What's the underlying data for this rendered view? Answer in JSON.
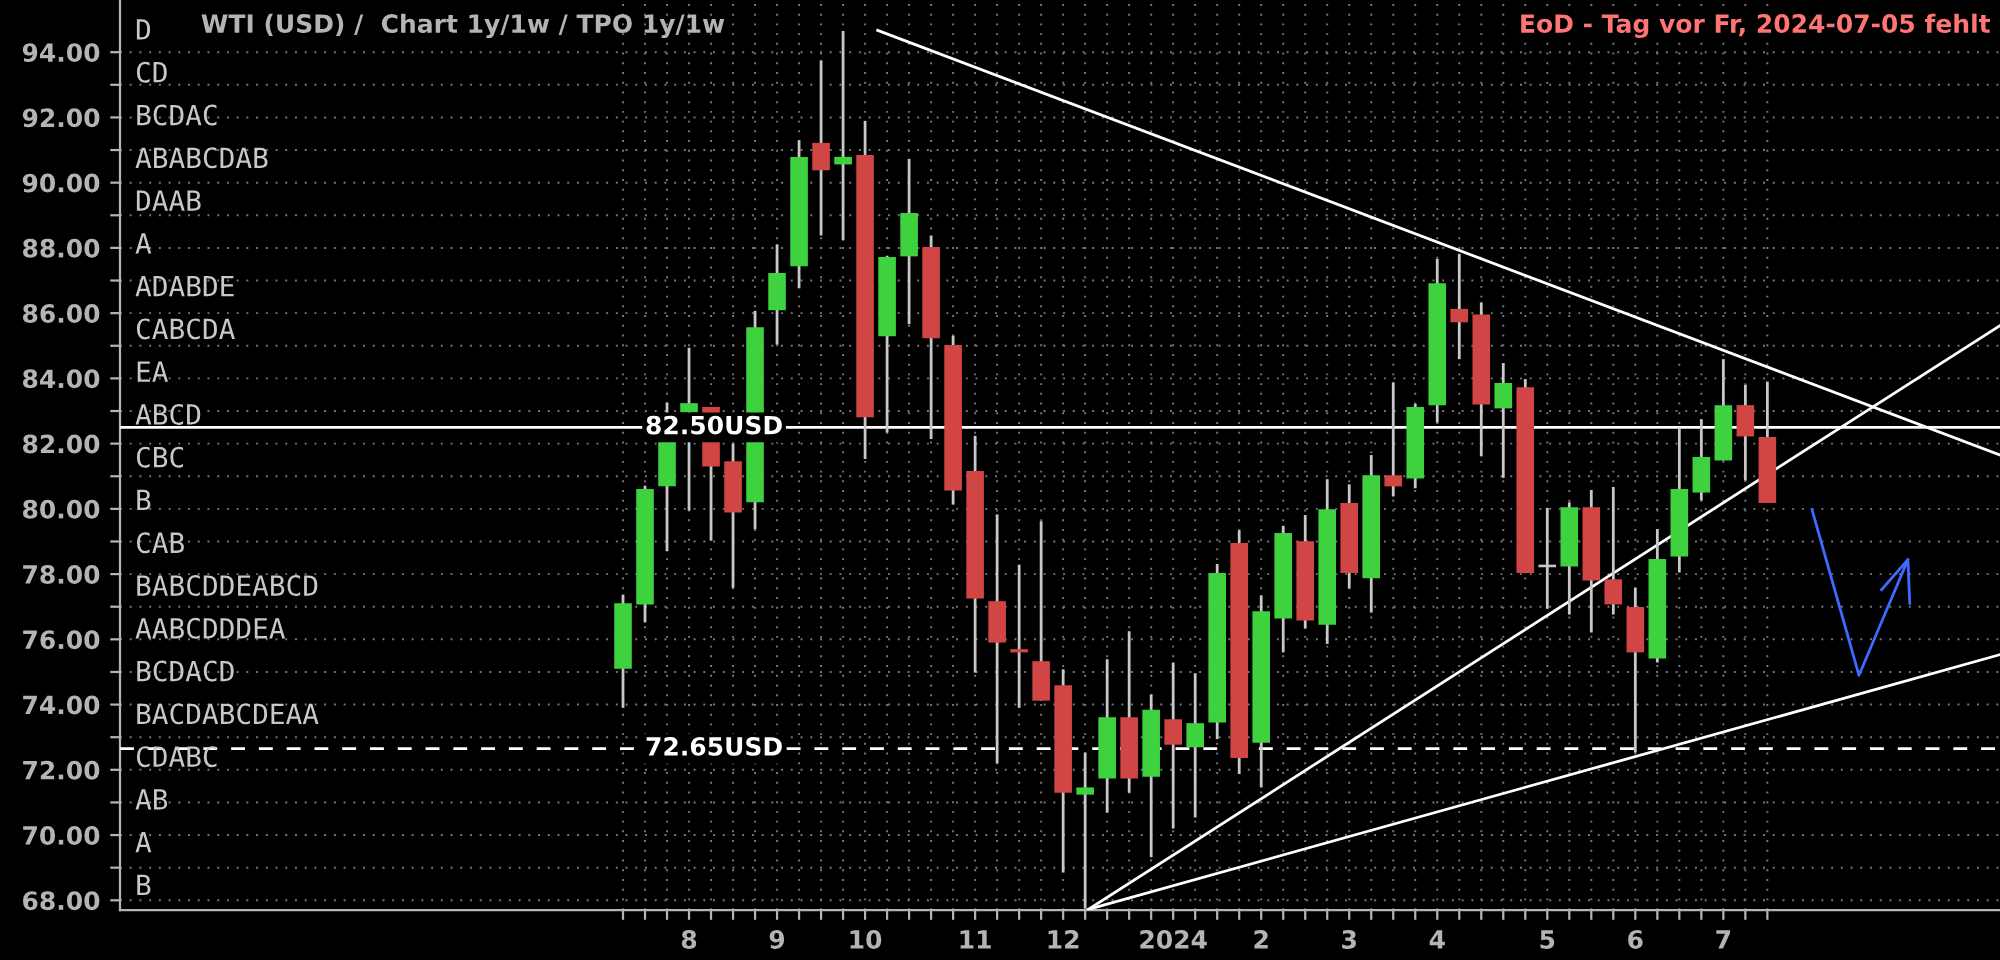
{
  "chart_data": {
    "type": "candlestick",
    "title": "WTI (USD) /  Chart 1y/1w / TPO 1y/1w",
    "x": [
      "2023-07-10",
      "2023-07-17",
      "2023-07-24",
      "2023-07-31",
      "2023-08-07",
      "2023-08-14",
      "2023-08-21",
      "2023-08-28",
      "2023-09-04",
      "2023-09-11",
      "2023-09-18",
      "2023-09-25",
      "2023-10-02",
      "2023-10-09",
      "2023-10-16",
      "2023-10-23",
      "2023-10-30",
      "2023-11-06",
      "2023-11-13",
      "2023-11-20",
      "2023-11-27",
      "2023-12-04",
      "2023-12-11",
      "2023-12-18",
      "2023-12-25",
      "2024-01-01",
      "2024-01-08",
      "2024-01-15",
      "2024-01-22",
      "2024-01-29",
      "2024-02-05",
      "2024-02-12",
      "2024-02-19",
      "2024-02-26",
      "2024-03-04",
      "2024-03-11",
      "2024-03-18",
      "2024-03-25",
      "2024-04-01",
      "2024-04-08",
      "2024-04-15",
      "2024-04-22",
      "2024-04-29",
      "2024-05-06",
      "2024-05-13",
      "2024-05-20",
      "2024-05-27",
      "2024-06-03",
      "2024-06-10",
      "2024-06-17",
      "2024-06-24",
      "2024-07-01",
      "2024-07-08"
    ],
    "ohlc": [
      [
        75.1,
        77.37,
        73.9,
        77.11
      ],
      [
        77.07,
        80.71,
        76.52,
        80.61
      ],
      [
        80.69,
        83.26,
        78.7,
        82.85
      ],
      [
        82.96,
        84.94,
        79.95,
        83.24
      ],
      [
        83.12,
        83.12,
        79.03,
        81.3
      ],
      [
        81.46,
        82.0,
        77.58,
        79.89
      ],
      [
        80.2,
        86.07,
        79.38,
        85.57
      ],
      [
        86.09,
        88.11,
        85.04,
        87.23
      ],
      [
        87.44,
        91.3,
        86.76,
        90.79
      ],
      [
        91.22,
        93.75,
        88.38,
        90.38
      ],
      [
        90.56,
        94.65,
        88.23,
        90.79
      ],
      [
        90.85,
        91.89,
        81.53,
        82.81
      ],
      [
        85.29,
        87.76,
        82.34,
        87.72
      ],
      [
        87.74,
        90.73,
        85.66,
        89.07
      ],
      [
        88.03,
        88.38,
        82.14,
        85.23
      ],
      [
        85.02,
        85.31,
        80.13,
        80.56
      ],
      [
        81.16,
        82.24,
        74.98,
        77.25
      ],
      [
        77.17,
        79.83,
        72.2,
        75.9
      ],
      [
        75.7,
        78.29,
        73.9,
        75.6
      ],
      [
        75.33,
        79.62,
        74.12,
        74.12
      ],
      [
        74.59,
        75.08,
        68.85,
        71.3
      ],
      [
        71.24,
        72.53,
        67.75,
        71.46
      ],
      [
        71.73,
        75.39,
        70.69,
        73.61
      ],
      [
        73.61,
        76.25,
        71.3,
        71.73
      ],
      [
        71.79,
        74.31,
        69.32,
        73.84
      ],
      [
        73.55,
        75.29,
        70.2,
        72.77
      ],
      [
        72.69,
        74.96,
        70.54,
        73.43
      ],
      [
        73.45,
        78.31,
        72.94,
        78.03
      ],
      [
        78.95,
        79.34,
        71.87,
        72.36
      ],
      [
        72.83,
        77.35,
        71.46,
        76.86
      ],
      [
        76.64,
        79.48,
        75.6,
        79.26
      ],
      [
        79.01,
        79.81,
        76.33,
        76.58
      ],
      [
        76.45,
        80.91,
        75.86,
        79.99
      ],
      [
        80.18,
        80.75,
        77.56,
        78.03
      ],
      [
        77.87,
        81.65,
        76.82,
        81.03
      ],
      [
        81.03,
        83.88,
        80.38,
        80.69
      ],
      [
        80.93,
        83.22,
        80.63,
        83.12
      ],
      [
        83.18,
        87.66,
        82.65,
        86.92
      ],
      [
        86.13,
        87.82,
        84.59,
        85.72
      ],
      [
        85.96,
        86.33,
        81.61,
        83.2
      ],
      [
        83.08,
        84.47,
        80.95,
        83.86
      ],
      [
        83.73,
        83.98,
        78.03,
        78.03
      ],
      [
        78.21,
        80.03,
        76.94,
        78.21
      ],
      [
        78.23,
        80.2,
        76.76,
        80.05
      ],
      [
        80.05,
        80.58,
        76.21,
        77.8
      ],
      [
        77.84,
        80.67,
        76.76,
        77.07
      ],
      [
        76.99,
        77.58,
        72.53,
        75.6
      ],
      [
        75.41,
        79.38,
        75.29,
        78.46
      ],
      [
        78.54,
        82.49,
        78.05,
        80.61
      ],
      [
        80.5,
        82.75,
        80.26,
        81.59
      ],
      [
        81.48,
        84.59,
        81.48,
        83.18
      ],
      [
        83.18,
        83.8,
        80.87,
        82.22
      ],
      [
        82.2,
        83.9,
        80.18,
        80.18
      ]
    ],
    "colors": [
      "#3fd23f",
      "#3fd23f",
      "#3fd23f",
      "#3fd23f",
      "#d24545",
      "#d24545",
      "#3fd23f",
      "#3fd23f",
      "#3fd23f",
      "#d24545",
      "#3fd23f",
      "#d24545",
      "#3fd23f",
      "#3fd23f",
      "#d24545",
      "#d24545",
      "#d24545",
      "#d24545",
      "#d24545",
      "#d24545",
      "#d24545",
      "#3fd23f",
      "#3fd23f",
      "#d24545",
      "#3fd23f",
      "#d24545",
      "#3fd23f",
      "#3fd23f",
      "#d24545",
      "#3fd23f",
      "#3fd23f",
      "#d24545",
      "#3fd23f",
      "#d24545",
      "#3fd23f",
      "#d24545",
      "#3fd23f",
      "#3fd23f",
      "#d24545",
      "#d24545",
      "#3fd23f",
      "#d24545",
      "#c8c8c8",
      "#3fd23f",
      "#d24545",
      "#d24545",
      "#d24545",
      "#3fd23f",
      "#3fd23f",
      "#3fd23f",
      "#3fd23f",
      "#d24545",
      "#d24545"
    ],
    "series": [
      {
        "type": "line",
        "color": "#ffffff",
        "x": [
          "2023-09-29",
          "2024-09-20"
        ],
        "values": [
          94.67,
          81.65
        ]
      },
      {
        "type": "line",
        "color": "#ffffff",
        "x": [
          "2023-12-05",
          "2024-09-20"
        ],
        "values": [
          67.72,
          85.62
        ]
      },
      {
        "type": "line",
        "color": "#ffffff",
        "x": [
          "2023-12-05",
          "2024-09-20"
        ],
        "values": [
          67.72,
          75.53
        ]
      }
    ],
    "ref_lines": [
      {
        "axis": "y",
        "value": 82.5,
        "label": "82.50USD",
        "color": "#ffffff",
        "line_style": "solid"
      },
      {
        "axis": "y",
        "value": 72.65,
        "label": "72.65USD",
        "color": "#ffffff",
        "line_style": "dashed"
      }
    ],
    "xlim": [
      "2023-01-31",
      "2024-09-20"
    ],
    "xticks": [
      {
        "value": "2023-07-10",
        "label": null
      },
      {
        "value": "2023-07-17",
        "label": null
      },
      {
        "value": "2023-07-24",
        "label": null
      },
      {
        "value": "2023-07-31",
        "label": "8"
      },
      {
        "value": "2023-08-07",
        "label": null
      },
      {
        "value": "2023-08-14",
        "label": null
      },
      {
        "value": "2023-08-21",
        "label": null
      },
      {
        "value": "2023-08-28",
        "label": "9"
      },
      {
        "value": "2023-09-04",
        "label": null
      },
      {
        "value": "2023-09-11",
        "label": null
      },
      {
        "value": "2023-09-18",
        "label": null
      },
      {
        "value": "2023-09-25",
        "label": "10"
      },
      {
        "value": "2023-10-02",
        "label": null
      },
      {
        "value": "2023-10-09",
        "label": null
      },
      {
        "value": "2023-10-16",
        "label": null
      },
      {
        "value": "2023-10-23",
        "label": null
      },
      {
        "value": "2023-10-30",
        "label": "11"
      },
      {
        "value": "2023-11-06",
        "label": null
      },
      {
        "value": "2023-11-13",
        "label": null
      },
      {
        "value": "2023-11-20",
        "label": null
      },
      {
        "value": "2023-11-27",
        "label": "12"
      },
      {
        "value": "2023-12-04",
        "label": null
      },
      {
        "value": "2023-12-11",
        "label": null
      },
      {
        "value": "2023-12-18",
        "label": null
      },
      {
        "value": "2023-12-25",
        "label": null
      },
      {
        "value": "2024-01-01",
        "label": "2024"
      },
      {
        "value": "2024-01-08",
        "label": null
      },
      {
        "value": "2024-01-15",
        "label": null
      },
      {
        "value": "2024-01-22",
        "label": null
      },
      {
        "value": "2024-01-29",
        "label": "2"
      },
      {
        "value": "2024-02-05",
        "label": null
      },
      {
        "value": "2024-02-12",
        "label": null
      },
      {
        "value": "2024-02-19",
        "label": null
      },
      {
        "value": "2024-02-26",
        "label": "3"
      },
      {
        "value": "2024-03-04",
        "label": null
      },
      {
        "value": "2024-03-11",
        "label": null
      },
      {
        "value": "2024-03-18",
        "label": null
      },
      {
        "value": "2024-03-25",
        "label": "4"
      },
      {
        "value": "2024-04-01",
        "label": null
      },
      {
        "value": "2024-04-08",
        "label": null
      },
      {
        "value": "2024-04-15",
        "label": null
      },
      {
        "value": "2024-04-22",
        "label": null
      },
      {
        "value": "2024-04-29",
        "label": "5"
      },
      {
        "value": "2024-05-06",
        "label": null
      },
      {
        "value": "2024-05-13",
        "label": null
      },
      {
        "value": "2024-05-20",
        "label": null
      },
      {
        "value": "2024-05-27",
        "label": "6"
      },
      {
        "value": "2024-06-03",
        "label": null
      },
      {
        "value": "2024-06-10",
        "label": null
      },
      {
        "value": "2024-06-17",
        "label": null
      },
      {
        "value": "2024-06-24",
        "label": "7"
      },
      {
        "value": "2024-07-01",
        "label": null
      },
      {
        "value": "2024-07-08",
        "label": null
      }
    ],
    "ylim": [
      67.7,
      95.6
    ],
    "yticks": [
      {
        "value": 68,
        "label": "68.00"
      },
      {
        "value": 69,
        "label": null
      },
      {
        "value": 70,
        "label": "70.00"
      },
      {
        "value": 71,
        "label": null
      },
      {
        "value": 72,
        "label": "72.00"
      },
      {
        "value": 73,
        "label": null
      },
      {
        "value": 74,
        "label": "74.00"
      },
      {
        "value": 75,
        "label": null
      },
      {
        "value": 76,
        "label": "76.00"
      },
      {
        "value": 77,
        "label": null
      },
      {
        "value": 78,
        "label": "78.00"
      },
      {
        "value": 79,
        "label": null
      },
      {
        "value": 80,
        "label": "80.00"
      },
      {
        "value": 81,
        "label": null
      },
      {
        "value": 82,
        "label": "82.00"
      },
      {
        "value": 83,
        "label": null
      },
      {
        "value": 84,
        "label": "84.00"
      },
      {
        "value": 85,
        "label": null
      },
      {
        "value": 86,
        "label": "86.00"
      },
      {
        "value": 87,
        "label": null
      },
      {
        "value": 88,
        "label": "88.00"
      },
      {
        "value": 89,
        "label": null
      },
      {
        "value": 90,
        "label": "90.00"
      },
      {
        "value": 91,
        "label": null
      },
      {
        "value": 92,
        "label": "92.00"
      },
      {
        "value": 93,
        "label": null
      },
      {
        "value": 94,
        "label": "94.00"
      }
    ],
    "grid": true,
    "annotations": [
      "EoD - Tag vor Fr, 2024-07-05 fehlt",
      "D",
      "CD",
      "BCDAC",
      "ABABCDAB",
      "DAAB",
      "A",
      "ADABDE",
      "CABCDA",
      "EA",
      "ABCD",
      "CBC",
      "B",
      "CAB",
      "BABCDDEABCD",
      "AABCDDDEA",
      "BCDACD",
      "BACDABCDEAA",
      "CDABC",
      "AB",
      "A",
      "B"
    ]
  }
}
